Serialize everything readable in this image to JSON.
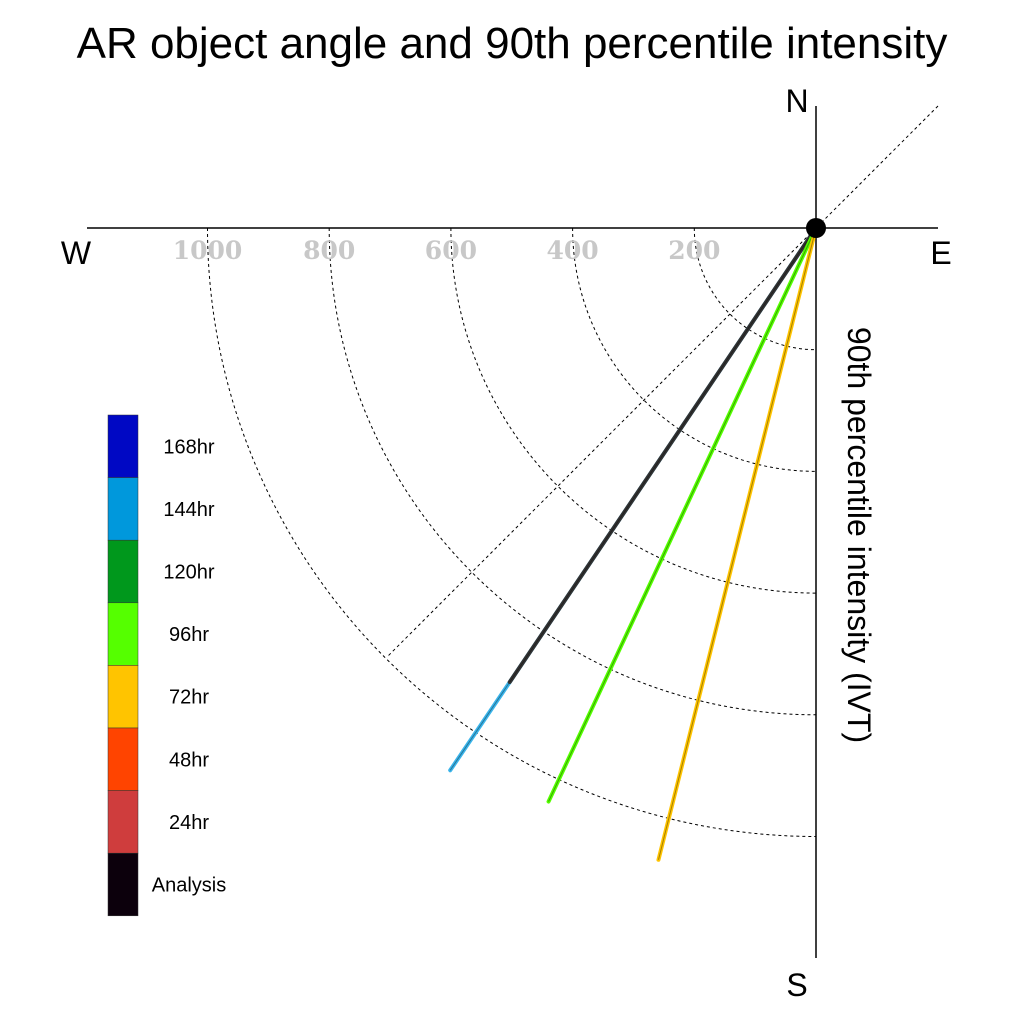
{
  "chart_data": {
    "type": "polar-vector",
    "title": "AR object angle and 90th percentile intensity",
    "ylabel": "90th percentile intensity (IVT)",
    "compass": {
      "north": "N",
      "south": "S",
      "east": "E",
      "west": "W"
    },
    "radial_ticks": [
      "1000",
      "800",
      "600",
      "400",
      "200"
    ],
    "radial_tick_values": [
      1000,
      800,
      600,
      400,
      200
    ],
    "radial_max": 1200,
    "legend": [
      {
        "label": "168hr",
        "color": "#0008c4"
      },
      {
        "label": "144hr",
        "color": "#0098dc"
      },
      {
        "label": "120hr",
        "color": "#00981c"
      },
      {
        "label": "96hr",
        "color": "#55ff00"
      },
      {
        "label": "72hr",
        "color": "#ffc400"
      },
      {
        "label": "48hr",
        "color": "#ff4400"
      },
      {
        "label": "24hr",
        "color": "#cf3d3d"
      },
      {
        "label": "Analysis",
        "color": "#0c000c"
      }
    ],
    "series": [
      {
        "name": "144hr",
        "color": "#3ab4ea",
        "angle_deg": 214,
        "intensity": 1075
      },
      {
        "name": "Analysis",
        "color": "#333333",
        "angle_deg": 214,
        "intensity": 900
      },
      {
        "name": "96hr",
        "color": "#55ff00",
        "angle_deg": 205,
        "intensity": 1040
      },
      {
        "name": "72hr",
        "color": "#ffc400",
        "angle_deg": 194,
        "intensity": 1070
      }
    ]
  }
}
